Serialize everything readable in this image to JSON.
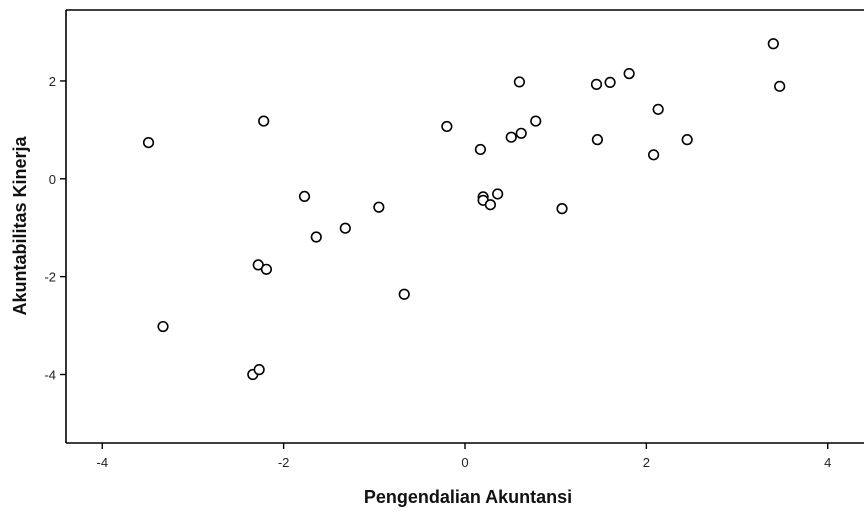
{
  "chart_data": {
    "type": "scatter",
    "xlabel": "Pengendalian Akuntansi",
    "ylabel": "Akuntabilitas Kinerja",
    "xlim": [
      -4.4,
      4.4
    ],
    "ylim": [
      -5.4,
      3.45
    ],
    "xticks": [
      -4,
      -2,
      0,
      2,
      4
    ],
    "yticks": [
      2,
      0,
      -2,
      -4
    ],
    "grid": false,
    "legend": "none",
    "marker": "open-circle",
    "colors": {
      "marker_stroke": "#000000",
      "axis": "#000000",
      "background": "#ffffff"
    },
    "points": [
      {
        "x": -3.49,
        "y": 0.74
      },
      {
        "x": -3.33,
        "y": -3.02
      },
      {
        "x": -2.34,
        "y": -4.0
      },
      {
        "x": -2.27,
        "y": -3.9
      },
      {
        "x": -2.28,
        "y": -1.76
      },
      {
        "x": -2.19,
        "y": -1.85
      },
      {
        "x": -2.22,
        "y": 1.18
      },
      {
        "x": -1.77,
        "y": -0.36
      },
      {
        "x": -1.64,
        "y": -1.19
      },
      {
        "x": -1.32,
        "y": -1.01
      },
      {
        "x": -0.95,
        "y": -0.58
      },
      {
        "x": -0.67,
        "y": -2.36
      },
      {
        "x": -0.2,
        "y": 1.07
      },
      {
        "x": 0.17,
        "y": 0.6
      },
      {
        "x": 0.2,
        "y": -0.37
      },
      {
        "x": 0.2,
        "y": -0.44
      },
      {
        "x": 0.28,
        "y": -0.53
      },
      {
        "x": 0.36,
        "y": -0.31
      },
      {
        "x": 0.51,
        "y": 0.85
      },
      {
        "x": 0.6,
        "y": 1.98
      },
      {
        "x": 0.62,
        "y": 0.93
      },
      {
        "x": 0.78,
        "y": 1.18
      },
      {
        "x": 1.07,
        "y": -0.61
      },
      {
        "x": 1.45,
        "y": 1.93
      },
      {
        "x": 1.46,
        "y": 0.8
      },
      {
        "x": 1.6,
        "y": 1.97
      },
      {
        "x": 1.81,
        "y": 2.15
      },
      {
        "x": 2.08,
        "y": 0.49
      },
      {
        "x": 2.13,
        "y": 1.42
      },
      {
        "x": 2.45,
        "y": 0.8
      },
      {
        "x": 3.4,
        "y": 2.76
      },
      {
        "x": 3.47,
        "y": 1.89
      }
    ]
  }
}
